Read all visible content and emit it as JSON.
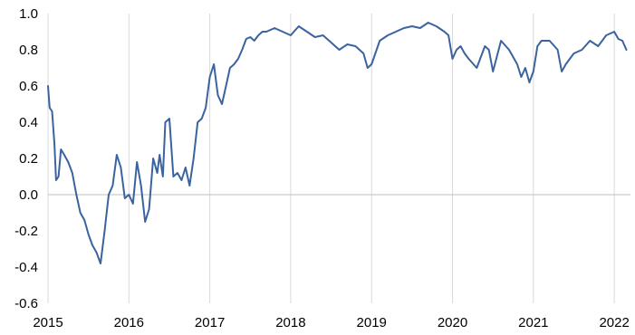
{
  "chart_data": {
    "type": "line",
    "title": "",
    "xlabel": "",
    "ylabel": "",
    "xlim": [
      2015,
      2022.2
    ],
    "ylim": [
      -0.6,
      1.0
    ],
    "grid": {
      "vertical": true,
      "horizontal": false,
      "zero_line": true
    },
    "legend": "none",
    "colors": {
      "line": "#3a63a0",
      "grid": "#d9d9d9",
      "zero_line": "#bfbfbf"
    },
    "x_ticks": [
      {
        "value": 2015,
        "label": "2015"
      },
      {
        "value": 2016,
        "label": "2016"
      },
      {
        "value": 2017,
        "label": "2017"
      },
      {
        "value": 2018,
        "label": "2018"
      },
      {
        "value": 2019,
        "label": "2019"
      },
      {
        "value": 2020,
        "label": "2020"
      },
      {
        "value": 2021,
        "label": "2021"
      },
      {
        "value": 2022,
        "label": "2022"
      }
    ],
    "y_ticks": [
      {
        "value": 1.0,
        "label": "1.0"
      },
      {
        "value": 0.8,
        "label": "0.8"
      },
      {
        "value": 0.6,
        "label": "0.6"
      },
      {
        "value": 0.4,
        "label": "0.4"
      },
      {
        "value": 0.2,
        "label": "0.2"
      },
      {
        "value": 0.0,
        "label": "0.0"
      },
      {
        "value": -0.2,
        "label": "-0.2"
      },
      {
        "value": -0.4,
        "label": "-0.4"
      },
      {
        "value": -0.6,
        "label": "-0.6"
      }
    ],
    "series": [
      {
        "x": [
          2015.0,
          2015.02,
          2015.05,
          2015.08,
          2015.1,
          2015.13,
          2015.16,
          2015.2,
          2015.25,
          2015.3,
          2015.35,
          2015.4,
          2015.45,
          2015.5,
          2015.55,
          2015.6,
          2015.65,
          2015.7,
          2015.75,
          2015.8,
          2015.85,
          2015.9,
          2015.95,
          2016.0,
          2016.05,
          2016.1,
          2016.15,
          2016.2,
          2016.25,
          2016.3,
          2016.35,
          2016.38,
          2016.42,
          2016.45,
          2016.5,
          2016.55,
          2016.6,
          2016.65,
          2016.7,
          2016.75,
          2016.8,
          2016.85,
          2016.9,
          2016.95,
          2017.0,
          2017.05,
          2017.1,
          2017.15,
          2017.2,
          2017.25,
          2017.3,
          2017.35,
          2017.4,
          2017.45,
          2017.5,
          2017.55,
          2017.6,
          2017.65,
          2017.7,
          2017.8,
          2017.9,
          2018.0,
          2018.1,
          2018.2,
          2018.3,
          2018.4,
          2018.5,
          2018.6,
          2018.7,
          2018.8,
          2018.9,
          2018.95,
          2019.0,
          2019.1,
          2019.2,
          2019.3,
          2019.4,
          2019.5,
          2019.6,
          2019.7,
          2019.8,
          2019.9,
          2019.95,
          2020.0,
          2020.05,
          2020.1,
          2020.15,
          2020.2,
          2020.3,
          2020.4,
          2020.45,
          2020.5,
          2020.6,
          2020.7,
          2020.8,
          2020.85,
          2020.9,
          2020.95,
          2021.0,
          2021.05,
          2021.1,
          2021.2,
          2021.3,
          2021.35,
          2021.4,
          2021.45,
          2021.5,
          2021.6,
          2021.7,
          2021.8,
          2021.9,
          2022.0,
          2022.05,
          2022.1,
          2022.15
        ],
        "values": [
          0.6,
          0.48,
          0.46,
          0.28,
          0.08,
          0.1,
          0.25,
          0.22,
          0.18,
          0.12,
          0.0,
          -0.1,
          -0.14,
          -0.22,
          -0.28,
          -0.32,
          -0.38,
          -0.2,
          0.0,
          0.05,
          0.22,
          0.15,
          -0.02,
          0.0,
          -0.05,
          0.18,
          0.05,
          -0.15,
          -0.08,
          0.2,
          0.12,
          0.22,
          0.1,
          0.4,
          0.42,
          0.1,
          0.12,
          0.08,
          0.15,
          0.05,
          0.2,
          0.4,
          0.42,
          0.48,
          0.65,
          0.72,
          0.55,
          0.5,
          0.6,
          0.7,
          0.72,
          0.75,
          0.8,
          0.86,
          0.87,
          0.85,
          0.88,
          0.9,
          0.9,
          0.92,
          0.9,
          0.88,
          0.93,
          0.9,
          0.87,
          0.88,
          0.84,
          0.8,
          0.83,
          0.82,
          0.78,
          0.7,
          0.72,
          0.85,
          0.88,
          0.9,
          0.92,
          0.93,
          0.92,
          0.95,
          0.93,
          0.9,
          0.88,
          0.75,
          0.8,
          0.82,
          0.78,
          0.75,
          0.7,
          0.82,
          0.8,
          0.68,
          0.85,
          0.8,
          0.72,
          0.65,
          0.7,
          0.62,
          0.68,
          0.82,
          0.85,
          0.85,
          0.8,
          0.68,
          0.72,
          0.75,
          0.78,
          0.8,
          0.85,
          0.82,
          0.88,
          0.9,
          0.86,
          0.85,
          0.8
        ]
      }
    ]
  }
}
